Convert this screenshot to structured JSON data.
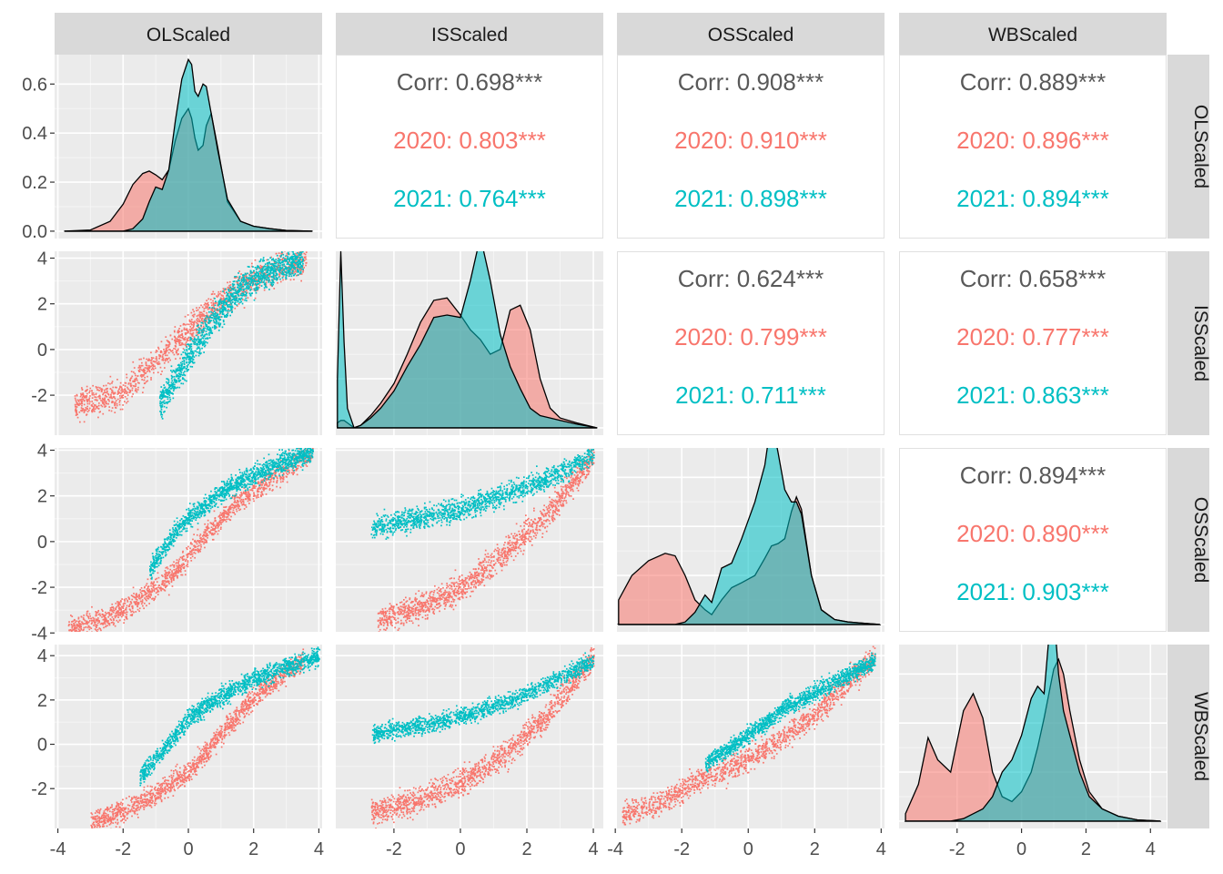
{
  "chart_data": {
    "type": "scatter-matrix",
    "variables": [
      "OLScaled",
      "ISScaled",
      "OSScaled",
      "WBScaled"
    ],
    "groups": [
      {
        "name": "2020",
        "color": "#F8766D"
      },
      {
        "name": "2021",
        "color": "#00BFC4"
      }
    ],
    "overall_color": "#595959",
    "panel_background": "#EBEBEB",
    "strip_background": "#D9D9D9",
    "axis_ranges": {
      "OLScaled": [
        -4.1,
        4.1
      ],
      "ISScaled": [
        -3.75,
        4.3
      ],
      "OSScaled": [
        -3.95,
        4.1
      ],
      "WBScaled": [
        -3.8,
        4.5
      ]
    },
    "x_ticks": [
      [
        "-4",
        "-2",
        "0",
        "2",
        "4"
      ],
      [
        "-2",
        "0",
        "2",
        "4"
      ],
      [
        "-4",
        "-2",
        "0",
        "2",
        "4"
      ],
      [
        "-2",
        "0",
        "2",
        "4"
      ]
    ],
    "y_ticks": {
      "density": [
        "0.0",
        "0.2",
        "0.4",
        "0.6"
      ],
      "ISScaled": [
        "-2",
        "0",
        "2",
        "4"
      ],
      "OSScaled": [
        "-4",
        "-2",
        "0",
        "2",
        "4"
      ],
      "WBScaled": [
        "-2",
        "0",
        "2",
        "4"
      ]
    },
    "density_ylim": [
      -0.03,
      0.72
    ],
    "correlations": [
      {
        "pair": [
          "OLScaled",
          "ISScaled"
        ],
        "lines": [
          "Corr: 0.698***",
          "2020: 0.803***",
          "2021: 0.764***"
        ]
      },
      {
        "pair": [
          "OLScaled",
          "OSScaled"
        ],
        "lines": [
          "Corr: 0.908***",
          "2020: 0.910***",
          "2021: 0.898***"
        ]
      },
      {
        "pair": [
          "OLScaled",
          "WBScaled"
        ],
        "lines": [
          "Corr: 0.889***",
          "2020: 0.896***",
          "2021: 0.894***"
        ]
      },
      {
        "pair": [
          "ISScaled",
          "OSScaled"
        ],
        "lines": [
          "Corr: 0.624***",
          "2020: 0.799***",
          "2021: 0.711***"
        ]
      },
      {
        "pair": [
          "ISScaled",
          "WBScaled"
        ],
        "lines": [
          "Corr: 0.658***",
          "2020: 0.777***",
          "2021: 0.863***"
        ]
      },
      {
        "pair": [
          "OSScaled",
          "WBScaled"
        ],
        "lines": [
          "Corr: 0.894***",
          "2020: 0.890***",
          "2021: 0.903***"
        ]
      }
    ],
    "densities": {
      "OLScaled": {
        "x": [
          -3.8,
          -3.0,
          -2.4,
          -2.0,
          -1.7,
          -1.4,
          -1.2,
          -1.0,
          -0.8,
          -0.6,
          -0.4,
          -0.2,
          0.0,
          0.1,
          0.2,
          0.3,
          0.45,
          0.55,
          0.7,
          0.9,
          1.2,
          1.6,
          2.0,
          2.5,
          3.0,
          3.8
        ],
        "2020": [
          0.0,
          0.005,
          0.04,
          0.11,
          0.19,
          0.235,
          0.245,
          0.23,
          0.21,
          0.25,
          0.37,
          0.46,
          0.5,
          0.46,
          0.38,
          0.33,
          0.35,
          0.43,
          0.48,
          0.34,
          0.12,
          0.04,
          0.02,
          0.01,
          0.003,
          0.0
        ],
        "2021": [
          0.0,
          0.0,
          0.0,
          0.0,
          0.01,
          0.05,
          0.12,
          0.18,
          0.17,
          0.25,
          0.45,
          0.62,
          0.7,
          0.68,
          0.57,
          0.55,
          0.6,
          0.59,
          0.48,
          0.33,
          0.13,
          0.04,
          0.02,
          0.01,
          0.003,
          0.0
        ]
      },
      "ISScaled": {
        "x": [
          -3.7,
          -3.6,
          -3.5,
          -3.4,
          -3.2,
          -3.0,
          -2.7,
          -2.4,
          -2.0,
          -1.6,
          -1.2,
          -0.8,
          -0.4,
          0.0,
          0.3,
          0.6,
          0.9,
          1.2,
          1.5,
          1.8,
          2.1,
          2.4,
          2.7,
          3.0,
          3.5,
          4.1
        ],
        "2020": [
          0.02,
          0.03,
          0.03,
          0.02,
          0.0,
          0.01,
          0.05,
          0.1,
          0.18,
          0.3,
          0.43,
          0.52,
          0.53,
          0.46,
          0.4,
          0.36,
          0.3,
          0.32,
          0.48,
          0.5,
          0.4,
          0.2,
          0.08,
          0.04,
          0.02,
          0.0
        ],
        "2021": [
          0.2,
          0.72,
          0.35,
          0.08,
          0.0,
          0.01,
          0.04,
          0.08,
          0.15,
          0.25,
          0.34,
          0.45,
          0.46,
          0.45,
          0.6,
          0.78,
          0.6,
          0.38,
          0.25,
          0.16,
          0.08,
          0.05,
          0.04,
          0.03,
          0.015,
          0.0
        ]
      },
      "OSScaled": {
        "x": [
          -3.9,
          -3.5,
          -3.0,
          -2.5,
          -2.2,
          -1.9,
          -1.6,
          -1.3,
          -1.1,
          -0.8,
          -0.5,
          -0.2,
          0.2,
          0.5,
          0.7,
          0.9,
          1.1,
          1.3,
          1.45,
          1.6,
          1.9,
          2.2,
          2.6,
          3.0,
          3.5,
          3.95
        ],
        "2020": [
          0.1,
          0.2,
          0.26,
          0.29,
          0.28,
          0.2,
          0.1,
          0.06,
          0.04,
          0.1,
          0.15,
          0.17,
          0.2,
          0.27,
          0.32,
          0.33,
          0.35,
          0.46,
          0.52,
          0.47,
          0.2,
          0.06,
          0.02,
          0.01,
          0.005,
          0.0
        ],
        "2021": [
          0.0,
          0.0,
          0.0,
          0.0,
          0.0,
          0.01,
          0.05,
          0.12,
          0.09,
          0.23,
          0.25,
          0.35,
          0.5,
          0.65,
          0.84,
          0.7,
          0.55,
          0.5,
          0.5,
          0.45,
          0.2,
          0.06,
          0.02,
          0.01,
          0.005,
          0.0
        ]
      },
      "WBScaled": {
        "x": [
          -3.6,
          -3.2,
          -2.9,
          -2.6,
          -2.2,
          -1.8,
          -1.5,
          -1.2,
          -0.9,
          -0.6,
          -0.3,
          0.0,
          0.3,
          0.5,
          0.7,
          0.85,
          1.0,
          1.15,
          1.3,
          1.5,
          1.8,
          2.1,
          2.5,
          3.0,
          3.6,
          4.3
        ],
        "2020": [
          0.03,
          0.15,
          0.34,
          0.25,
          0.2,
          0.45,
          0.52,
          0.42,
          0.2,
          0.1,
          0.08,
          0.12,
          0.2,
          0.3,
          0.42,
          0.52,
          0.62,
          0.66,
          0.6,
          0.45,
          0.25,
          0.12,
          0.05,
          0.02,
          0.005,
          0.0
        ],
        "2021": [
          0.0,
          0.0,
          0.0,
          0.0,
          0.0,
          0.01,
          0.03,
          0.05,
          0.1,
          0.2,
          0.25,
          0.35,
          0.5,
          0.55,
          0.52,
          0.75,
          0.86,
          0.6,
          0.45,
          0.35,
          0.2,
          0.1,
          0.05,
          0.02,
          0.005,
          0.0
        ]
      }
    },
    "scatter_trends": {
      "ISScaled~OLScaled": {
        "2020": {
          "x": [
            -3.5,
            -2.0,
            -1.0,
            0.0,
            1.0,
            2.0,
            3.6
          ],
          "y": [
            -2.4,
            -1.9,
            -0.4,
            0.8,
            2.2,
            3.2,
            4.0
          ],
          "spread": 0.6
        },
        "2021": {
          "x": [
            -0.9,
            -0.3,
            0.2,
            0.8,
            1.5,
            2.2,
            3.5
          ],
          "y": [
            -2.3,
            -1.0,
            0.2,
            1.4,
            2.6,
            3.3,
            4.0
          ],
          "spread": 0.6
        }
      },
      "OSScaled~OLScaled": {
        "2020": {
          "x": [
            -3.7,
            -2.5,
            -1.5,
            -0.5,
            0.5,
            1.5,
            3.8
          ],
          "y": [
            -3.8,
            -3.3,
            -2.5,
            -1.4,
            0.3,
            1.8,
            4.0
          ],
          "spread": 0.45
        },
        "2021": {
          "x": [
            -1.2,
            -0.5,
            0.0,
            0.5,
            1.0,
            2.0,
            3.8
          ],
          "y": [
            -1.2,
            0.3,
            1.1,
            1.6,
            2.2,
            3.0,
            4.0
          ],
          "spread": 0.4
        }
      },
      "WBScaled~OLScaled": {
        "2020": {
          "x": [
            -3.0,
            -2.0,
            -1.0,
            0.0,
            1.0,
            2.0,
            3.5
          ],
          "y": [
            -3.5,
            -3.0,
            -2.2,
            -1.2,
            0.5,
            2.2,
            3.8
          ],
          "spread": 0.45
        },
        "2021": {
          "x": [
            -1.5,
            -0.5,
            0.0,
            0.5,
            1.0,
            2.0,
            4.0
          ],
          "y": [
            -1.5,
            0.3,
            1.2,
            1.8,
            2.2,
            3.0,
            4.0
          ],
          "spread": 0.4
        }
      },
      "OSScaled~ISScaled": {
        "2020": {
          "x": [
            -2.5,
            -1.5,
            -0.5,
            0.5,
            1.5,
            2.5,
            4.0
          ],
          "y": [
            -3.4,
            -3.0,
            -2.4,
            -1.5,
            -0.2,
            1.0,
            3.8
          ],
          "spread": 0.55
        },
        "2021": {
          "x": [
            -2.7,
            -1.5,
            -0.5,
            0.5,
            1.5,
            2.5,
            4.0
          ],
          "y": [
            0.6,
            1.0,
            1.3,
            1.7,
            2.2,
            2.7,
            3.8
          ],
          "spread": 0.45
        }
      },
      "WBScaled~ISScaled": {
        "2020": {
          "x": [
            -2.7,
            -1.5,
            -0.5,
            0.5,
            1.5,
            2.5,
            4.0
          ],
          "y": [
            -3.0,
            -2.6,
            -2.0,
            -1.3,
            -0.2,
            1.2,
            4.0
          ],
          "spread": 0.55
        },
        "2021": {
          "x": [
            -2.7,
            -1.5,
            -0.5,
            0.5,
            1.5,
            2.5,
            4.0
          ],
          "y": [
            0.5,
            0.8,
            1.1,
            1.5,
            2.0,
            2.7,
            3.8
          ],
          "spread": 0.35
        }
      },
      "WBScaled~OSScaled": {
        "2020": {
          "x": [
            -3.8,
            -2.5,
            -1.5,
            -0.5,
            0.5,
            2.0,
            3.8
          ],
          "y": [
            -3.2,
            -2.5,
            -1.6,
            -1.0,
            -0.2,
            1.4,
            4.0
          ],
          "spread": 0.5
        },
        "2021": {
          "x": [
            -1.3,
            -0.5,
            0.0,
            0.5,
            1.0,
            2.0,
            3.8
          ],
          "y": [
            -0.8,
            -0.1,
            0.5,
            1.0,
            1.6,
            2.4,
            3.8
          ],
          "spread": 0.35
        }
      }
    }
  }
}
